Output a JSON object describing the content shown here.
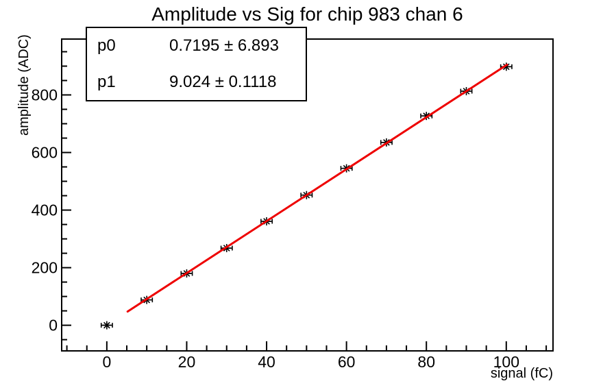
{
  "window": {
    "background": "#ffffff"
  },
  "chart_data": {
    "type": "scatter",
    "title": "Amplitude vs Sig for chip 983 chan 6",
    "xlabel": "signal (fC)",
    "ylabel": "amplitude (ADC)",
    "grid": false,
    "frame_color": "#000000",
    "xlim": [
      -11.3,
      111.7
    ],
    "ylim": [
      -89,
      994
    ],
    "x_major_ticks": [
      0,
      20,
      40,
      60,
      80,
      100
    ],
    "x_minor_step": 5,
    "y_major_ticks": [
      0,
      200,
      400,
      600,
      800
    ],
    "y_minor_step": 50,
    "series": [
      {
        "name": "amplitude vs signal data",
        "marker": "asterisk",
        "color": "#000000",
        "x": [
          0,
          10,
          20,
          30,
          40,
          50,
          60,
          70,
          80,
          90,
          100
        ],
        "y": [
          0,
          88,
          180,
          268,
          361,
          452,
          545,
          635,
          727,
          813,
          898
        ],
        "x_err": 1.4
      }
    ],
    "fit": {
      "p0": 0.7195,
      "p1": 9.024,
      "x_range": [
        5.2,
        100.2
      ],
      "color": "#ee0000"
    },
    "stats_box": {
      "rows": [
        {
          "param": "p0",
          "value": "0.7195 ± 6.893"
        },
        {
          "param": "p1",
          "value": "9.024 ± 0.1118"
        }
      ]
    }
  }
}
